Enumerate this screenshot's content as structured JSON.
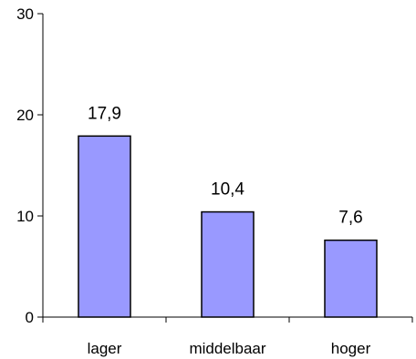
{
  "chart_data": {
    "type": "bar",
    "categories": [
      "lager",
      "middelbaar",
      "hoger"
    ],
    "values": [
      17.9,
      10.4,
      7.6
    ],
    "data_labels": [
      "17,9",
      "10,4",
      "7,6"
    ],
    "ylim": [
      0,
      30
    ],
    "yticks": [
      0,
      10,
      20,
      30
    ],
    "ytick_labels": [
      "0",
      "10",
      "20",
      "30"
    ],
    "title": "",
    "xlabel": "",
    "ylabel": "",
    "grid": false,
    "legend": "none",
    "colors": {
      "bar_fill": "#9999ff",
      "bar_stroke": "#000000",
      "axis": "#000000"
    }
  }
}
